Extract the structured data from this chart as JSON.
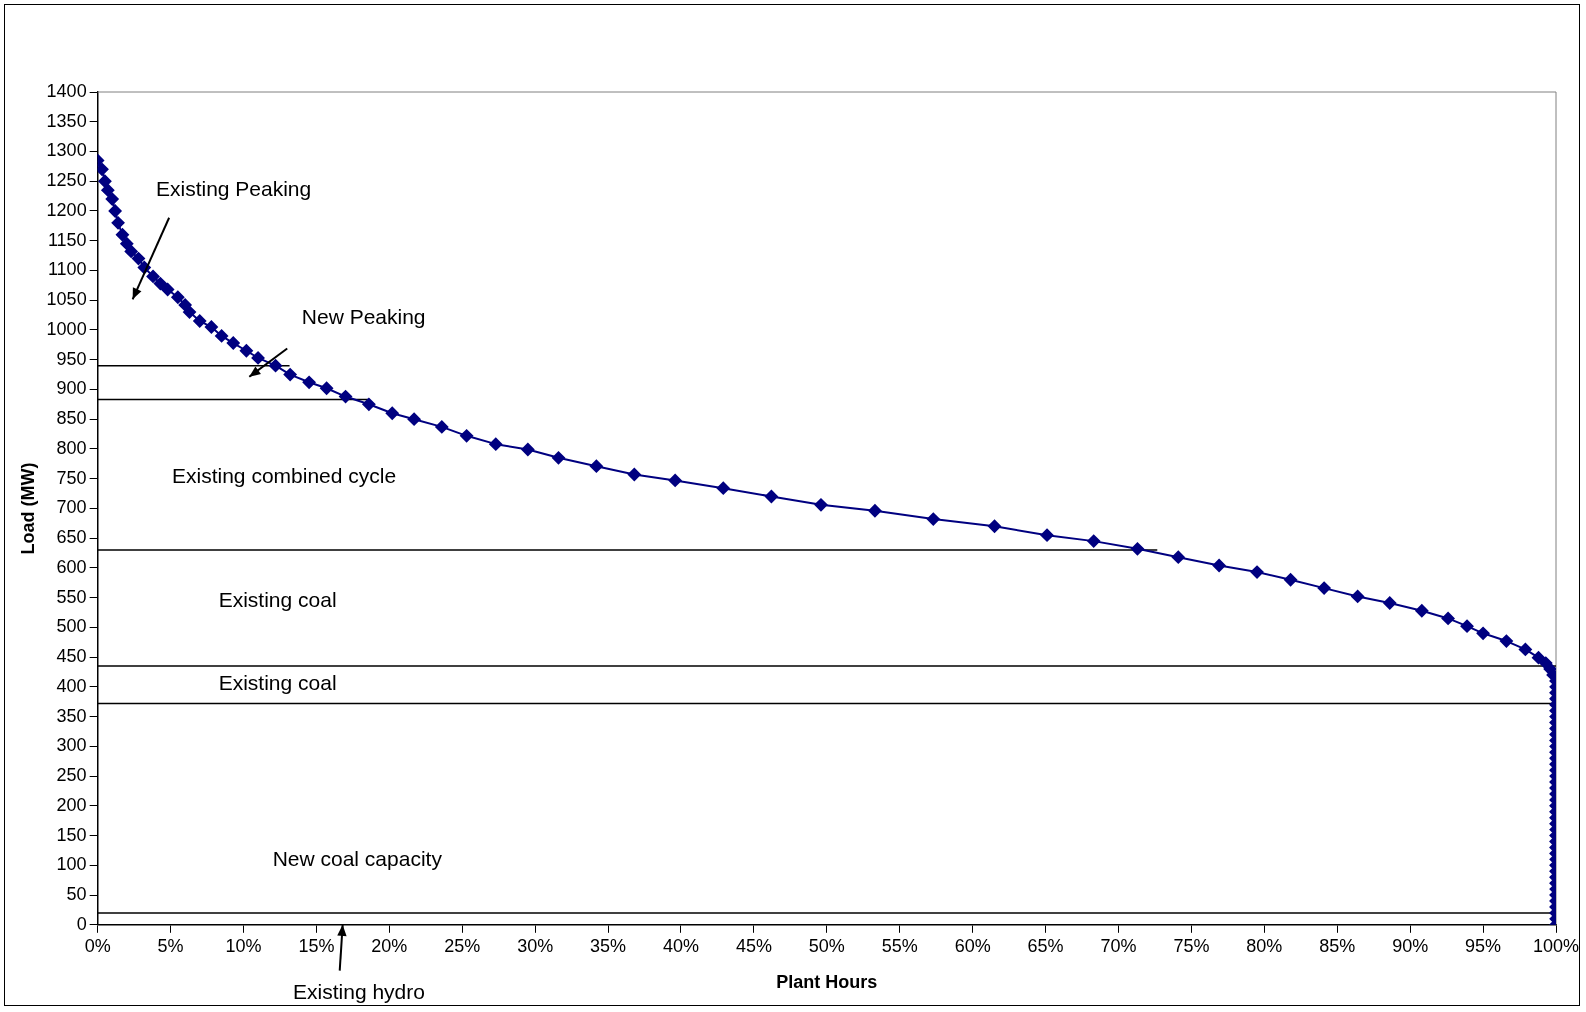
{
  "chart_data": {
    "type": "line",
    "xlabel": "Plant Hours",
    "ylabel": "Load (MW)",
    "xlim": [
      0,
      100
    ],
    "ylim": [
      0,
      1400
    ],
    "xticks": [
      {
        "value": 0,
        "label": "0%"
      },
      {
        "value": 5,
        "label": "5%"
      },
      {
        "value": 10,
        "label": "10%"
      },
      {
        "value": 15,
        "label": "15%"
      },
      {
        "value": 20,
        "label": "20%"
      },
      {
        "value": 25,
        "label": "25%"
      },
      {
        "value": 30,
        "label": "30%"
      },
      {
        "value": 35,
        "label": "35%"
      },
      {
        "value": 40,
        "label": "40%"
      },
      {
        "value": 45,
        "label": "45%"
      },
      {
        "value": 50,
        "label": "50%"
      },
      {
        "value": 55,
        "label": "55%"
      },
      {
        "value": 60,
        "label": "60%"
      },
      {
        "value": 65,
        "label": "65%"
      },
      {
        "value": 70,
        "label": "70%"
      },
      {
        "value": 75,
        "label": "75%"
      },
      {
        "value": 80,
        "label": "80%"
      },
      {
        "value": 85,
        "label": "85%"
      },
      {
        "value": 90,
        "label": "90%"
      },
      {
        "value": 95,
        "label": "95%"
      },
      {
        "value": 100,
        "label": "100%"
      }
    ],
    "yticks": [
      0,
      50,
      100,
      150,
      200,
      250,
      300,
      350,
      400,
      450,
      500,
      550,
      600,
      650,
      700,
      750,
      800,
      850,
      900,
      950,
      1000,
      1050,
      1100,
      1150,
      1200,
      1250,
      1300,
      1350,
      1400
    ],
    "grid": false,
    "legend": false,
    "marker": "diamond",
    "line_style": "solid",
    "series": [
      {
        "color": "#000080",
        "x": [
          0,
          0.3,
          0.5,
          0.7,
          1.0,
          1.2,
          1.4,
          1.7,
          2.0,
          2.3,
          2.8,
          3.2,
          3.8,
          4.3,
          4.8,
          5.5,
          6.0,
          6.3,
          7.0,
          7.8,
          8.5,
          9.3,
          10.2,
          11.0,
          12.2,
          13.2,
          14.5,
          15.7,
          17.0,
          18.6,
          20.2,
          21.7,
          23.6,
          25.3,
          27.3,
          29.5,
          31.6,
          34.2,
          36.8,
          39.6,
          42.9,
          46.2,
          49.6,
          53.3,
          57.3,
          61.5,
          65.1,
          68.3,
          71.3,
          74.1,
          76.9,
          79.5,
          81.8,
          84.1,
          86.4,
          88.6,
          90.8,
          92.6,
          93.9,
          95.0,
          96.6,
          97.9,
          98.8,
          99.3,
          99.6,
          99.8,
          100,
          100,
          100,
          100,
          100,
          100,
          100,
          100,
          100,
          100,
          100,
          100,
          100,
          100,
          100,
          100,
          100,
          100,
          100,
          100,
          100,
          100,
          100,
          100,
          100,
          100,
          100,
          100,
          100,
          100,
          100,
          100,
          100,
          100,
          100,
          100,
          100,
          100,
          100,
          100,
          100,
          100
        ],
        "values": [
          1285,
          1270,
          1250,
          1235,
          1220,
          1200,
          1180,
          1160,
          1145,
          1132,
          1120,
          1105,
          1090,
          1078,
          1068,
          1055,
          1042,
          1030,
          1015,
          1005,
          990,
          978,
          965,
          953,
          940,
          925,
          912,
          902,
          888,
          875,
          860,
          850,
          837,
          822,
          808,
          799,
          785,
          771,
          757,
          747,
          734,
          720,
          706,
          696,
          682,
          670,
          655,
          645,
          632,
          618,
          604,
          593,
          580,
          566,
          552,
          541,
          528,
          515,
          502,
          490,
          477,
          463,
          449,
          440,
          430,
          420,
          410,
          400,
          390,
          380,
          370,
          360,
          350,
          340,
          330,
          320,
          310,
          300,
          290,
          280,
          270,
          260,
          250,
          240,
          230,
          220,
          210,
          200,
          190,
          180,
          170,
          160,
          150,
          140,
          130,
          120,
          110,
          100,
          90,
          80,
          70,
          60,
          50,
          40,
          30,
          20,
          10,
          0
        ]
      }
    ],
    "ref_lines": [
      {
        "axis": "y",
        "value": 940,
        "color": "#000000"
      },
      {
        "axis": "y",
        "value": 883,
        "color": "#000000"
      },
      {
        "axis": "y",
        "value": 630,
        "color": "#000000"
      },
      {
        "axis": "y",
        "value": 435,
        "color": "#000000"
      },
      {
        "axis": "y",
        "value": 372,
        "color": "#000000"
      },
      {
        "axis": "y",
        "value": 20,
        "color": "#000000"
      }
    ],
    "annotations": [
      "Existing Peaking",
      "New Peaking",
      "Existing combined cycle",
      "Existing coal",
      "Existing coal",
      "New coal capacity",
      "Existing hydro"
    ]
  }
}
